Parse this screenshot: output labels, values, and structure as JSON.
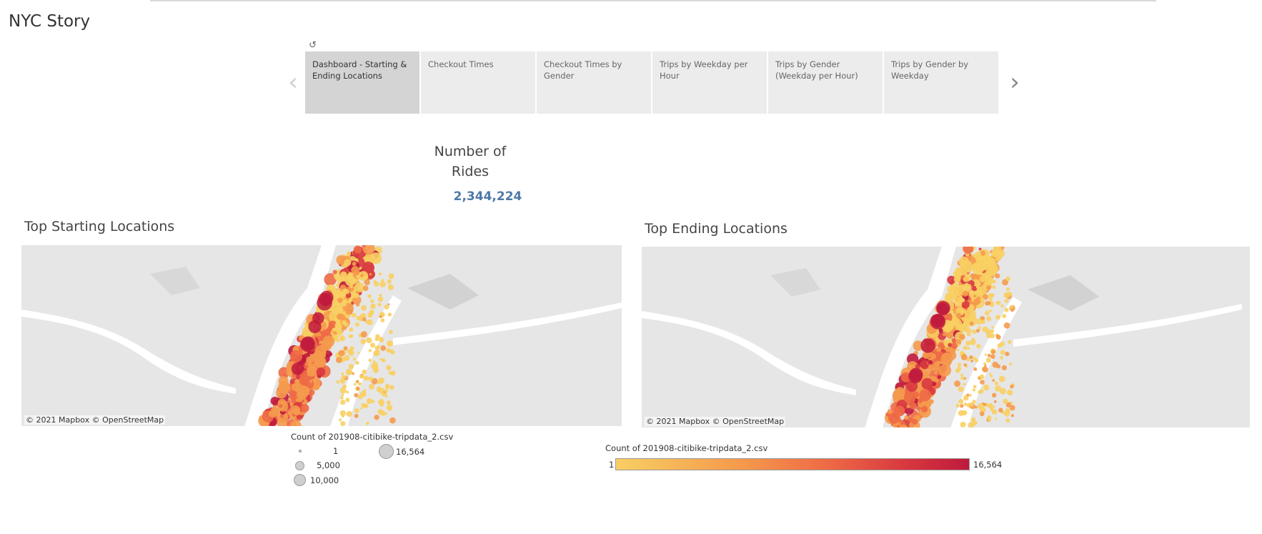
{
  "story": {
    "title": "NYC Story"
  },
  "tabs": [
    {
      "label": "Dashboard - Starting & Ending Locations",
      "active": true
    },
    {
      "label": "Checkout Times",
      "active": false
    },
    {
      "label": "Checkout Times by Gender",
      "active": false
    },
    {
      "label": "Trips by Weekday per Hour",
      "active": false
    },
    {
      "label": "Trips by Gender (Weekday per Hour)",
      "active": false
    },
    {
      "label": "Trips by Gender by Weekday",
      "active": false
    }
  ],
  "icons": {
    "revert": "revert-icon",
    "prev": "chevron-left-icon",
    "next": "chevron-right-icon"
  },
  "kpi": {
    "label": "Number of Rides",
    "value": "2,344,224"
  },
  "maps": {
    "start": {
      "title": "Top Starting Locations",
      "attribution": "© 2021 Mapbox  © OpenStreetMap"
    },
    "end": {
      "title": "Top Ending Locations",
      "attribution": "© 2021 Mapbox  © OpenStreetMap"
    }
  },
  "size_legend": {
    "title": "Count of 201908-citibike-tripdata_2.csv",
    "items": [
      "1",
      "5,000",
      "10,000",
      "16,564"
    ]
  },
  "color_legend": {
    "title": "Count of 201908-citibike-tripdata_2.csv",
    "min": "1",
    "max": "16,564",
    "colors": [
      "#f8cf63",
      "#f59a4c",
      "#ee6a46",
      "#d8383f",
      "#bf1a3d"
    ]
  }
}
